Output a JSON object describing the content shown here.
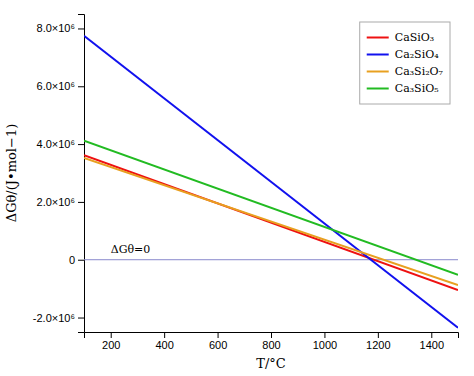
{
  "chart_data": {
    "type": "line",
    "xlabel": "T/°C",
    "ylabel": "ΔGθ/(J•mol−1)",
    "x": [
      100,
      1500
    ],
    "series": [
      {
        "name": "CaSiO₃",
        "color": "#ee1111",
        "values": [
          3620000,
          -1050000
        ]
      },
      {
        "name": "Ca₂SiO₄",
        "color": "#1111ee",
        "values": [
          7750000,
          -2350000
        ]
      },
      {
        "name": "Ca₃Si₂O₇",
        "color": "#e8a020",
        "values": [
          3520000,
          -880000
        ]
      },
      {
        "name": "Ca₃SiO₅",
        "color": "#22bb22",
        "values": [
          4120000,
          -520000
        ]
      }
    ],
    "xlim": [
      100,
      1500
    ],
    "ylim": [
      -2500000,
      8500000
    ],
    "xticks": [
      200,
      400,
      600,
      800,
      1000,
      1200,
      1400
    ],
    "yticks": [
      {
        "value": -2000000,
        "label": "-2.0×10⁶"
      },
      {
        "value": 0,
        "label": "0"
      },
      {
        "value": 2000000,
        "label": "2.0×10⁶"
      },
      {
        "value": 4000000,
        "label": "4.0×10⁶"
      },
      {
        "value": 6000000,
        "label": "6.0×10⁶"
      },
      {
        "value": 8000000,
        "label": "8.0×10⁶"
      }
    ],
    "hline": {
      "value": 0,
      "color": "#8888cc"
    },
    "annotations": [
      {
        "text": "ΔGθ=0",
        "x": 200,
        "y": 220000
      }
    ],
    "legend": "upper right",
    "grid": false
  }
}
